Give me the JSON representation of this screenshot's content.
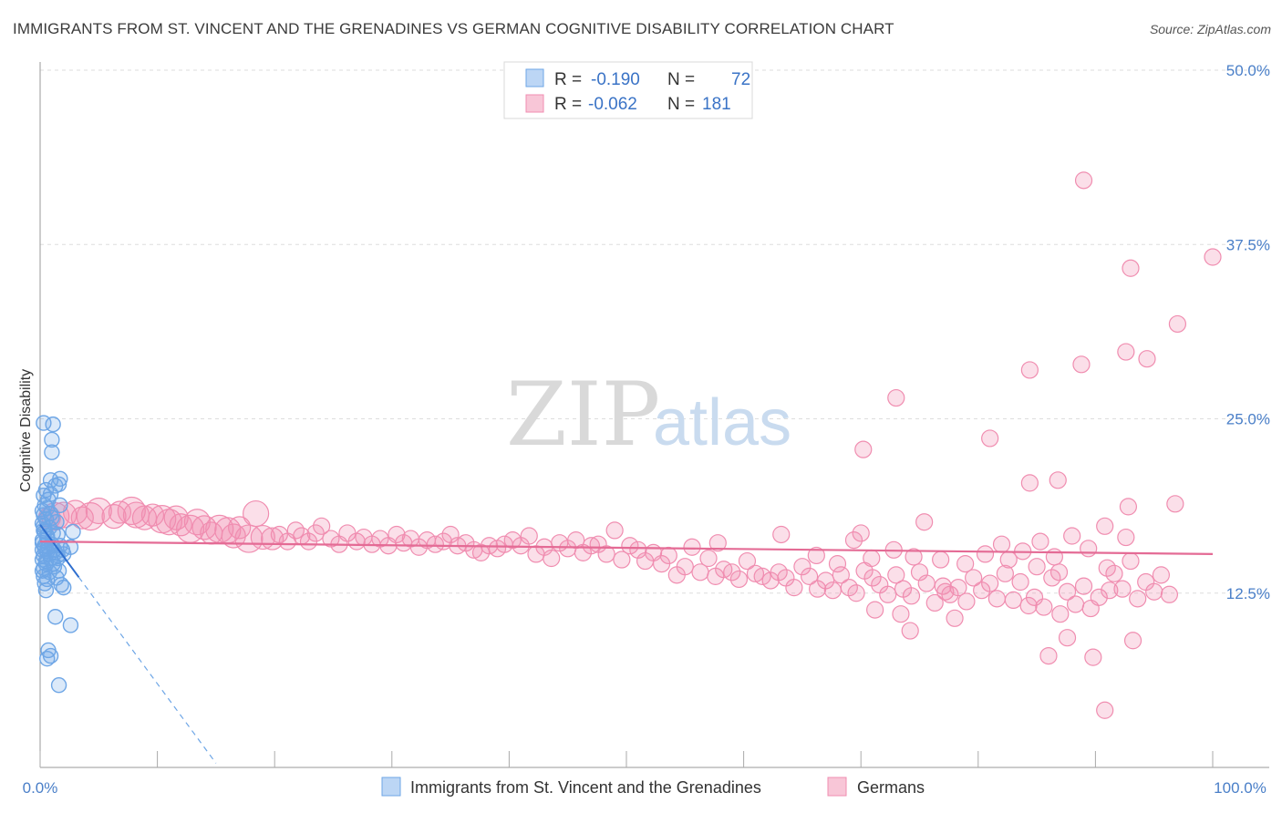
{
  "title": "IMMIGRANTS FROM ST. VINCENT AND THE GRENADINES VS GERMAN COGNITIVE DISABILITY CORRELATION CHART",
  "source": "Source: ZipAtlas.com",
  "watermark": {
    "zip": "ZIP",
    "atlas": "atlas"
  },
  "colors": {
    "blue": "#6ea6e6",
    "blue_line": "#2f6fcf",
    "pink": "#f08db0",
    "pink_line": "#e46b95",
    "tick_text": "#4a7fc8"
  },
  "legend": {
    "r_label": "R =",
    "n_label": "N =",
    "rows": [
      {
        "r": "-0.190",
        "n": "72"
      },
      {
        "r": "-0.062",
        "n": "181"
      }
    ]
  },
  "chart_data": {
    "type": "scatter",
    "ylabel": "Cognitive Disability",
    "xlim": [
      0,
      100
    ],
    "ylim": [
      0,
      50
    ],
    "y_ticks": [
      12.5,
      25.0,
      37.5,
      50.0
    ],
    "y_tick_labels": [
      "12.5%",
      "25.0%",
      "37.5%",
      "50.0%"
    ],
    "x_tick_labels": [
      "0.0%",
      "100.0%"
    ],
    "grid": "horizontal-dashed",
    "legend_position": "top-center",
    "series": [
      {
        "name": "Immigrants from St. Vincent and the Grenadines",
        "trend": {
          "x": [
            0,
            15
          ],
          "y": [
            17.4,
            0.3
          ],
          "solid_until_x": 3.3
        },
        "points": [
          [
            0.3,
            24.7
          ],
          [
            1.1,
            24.6
          ],
          [
            1.0,
            23.5
          ],
          [
            1.0,
            22.6
          ],
          [
            0.9,
            20.6
          ],
          [
            1.7,
            20.7
          ],
          [
            1.6,
            20.3
          ],
          [
            1.3,
            20.2
          ],
          [
            0.5,
            19.9
          ],
          [
            0.3,
            19.5
          ],
          [
            0.7,
            19.2
          ],
          [
            0.4,
            18.8
          ],
          [
            1.7,
            18.8
          ],
          [
            0.2,
            18.4
          ],
          [
            0.9,
            18.2
          ],
          [
            0.5,
            17.8
          ],
          [
            0.2,
            17.5
          ],
          [
            1.4,
            17.6
          ],
          [
            0.8,
            17.2
          ],
          [
            0.3,
            17.0
          ],
          [
            0.6,
            16.6
          ],
          [
            1.5,
            16.7
          ],
          [
            2.8,
            16.9
          ],
          [
            0.2,
            16.3
          ],
          [
            1.0,
            16.0
          ],
          [
            0.4,
            15.9
          ],
          [
            1.7,
            15.9
          ],
          [
            2.6,
            15.8
          ],
          [
            0.2,
            15.6
          ],
          [
            0.6,
            15.5
          ],
          [
            1.2,
            15.6
          ],
          [
            0.3,
            15.2
          ],
          [
            0.9,
            15.0
          ],
          [
            1.5,
            15.2
          ],
          [
            2.0,
            15.3
          ],
          [
            0.2,
            14.9
          ],
          [
            0.5,
            14.6
          ],
          [
            1.1,
            14.6
          ],
          [
            0.3,
            14.3
          ],
          [
            0.8,
            14.0
          ],
          [
            1.6,
            14.1
          ],
          [
            0.3,
            13.7
          ],
          [
            0.6,
            13.5
          ],
          [
            1.4,
            13.6
          ],
          [
            0.4,
            13.2
          ],
          [
            1.8,
            13.1
          ],
          [
            2.0,
            12.9
          ],
          [
            0.5,
            12.7
          ],
          [
            1.3,
            10.8
          ],
          [
            2.6,
            10.2
          ],
          [
            0.7,
            8.4
          ],
          [
            0.9,
            8.0
          ],
          [
            0.6,
            7.8
          ],
          [
            1.6,
            5.9
          ],
          [
            0.2,
            16.1
          ],
          [
            0.7,
            15.8
          ],
          [
            1.3,
            15.4
          ],
          [
            0.4,
            15.7
          ],
          [
            1.9,
            15.6
          ],
          [
            0.6,
            16.4
          ],
          [
            0.3,
            17.3
          ],
          [
            1.1,
            16.8
          ],
          [
            0.8,
            15.3
          ],
          [
            0.5,
            14.8
          ],
          [
            1.2,
            14.4
          ],
          [
            0.3,
            18.1
          ],
          [
            0.6,
            18.6
          ],
          [
            0.9,
            19.6
          ],
          [
            0.4,
            16.9
          ],
          [
            1.5,
            15.0
          ],
          [
            0.2,
            14.1
          ],
          [
            1.0,
            17.9
          ]
        ]
      },
      {
        "name": "Germans",
        "trend": {
          "x": [
            0,
            100
          ],
          "y": [
            16.2,
            15.3
          ]
        },
        "points": [
          [
            0.8,
            17.9
          ],
          [
            1.3,
            18.0
          ],
          [
            2.0,
            18.1
          ],
          [
            3.0,
            18.3
          ],
          [
            3.6,
            17.9
          ],
          [
            4.3,
            18.0
          ],
          [
            5.0,
            18.4
          ],
          [
            6.3,
            18.0
          ],
          [
            6.8,
            18.3
          ],
          [
            7.8,
            18.4
          ],
          [
            8.2,
            18.1
          ],
          [
            8.9,
            17.9
          ],
          [
            9.6,
            18.1
          ],
          [
            10.4,
            17.8
          ],
          [
            11.0,
            17.6
          ],
          [
            11.6,
            17.9
          ],
          [
            12.0,
            17.4
          ],
          [
            12.8,
            17.1
          ],
          [
            13.4,
            17.6
          ],
          [
            14.0,
            17.2
          ],
          [
            14.6,
            16.8
          ],
          [
            15.3,
            17.1
          ],
          [
            16.0,
            17.0
          ],
          [
            16.5,
            16.6
          ],
          [
            17.0,
            17.2
          ],
          [
            17.8,
            16.4
          ],
          [
            18.4,
            18.2
          ],
          [
            19.0,
            16.5
          ],
          [
            19.8,
            16.4
          ],
          [
            20.4,
            16.7
          ],
          [
            21.1,
            16.2
          ],
          [
            21.8,
            17.0
          ],
          [
            22.3,
            16.6
          ],
          [
            22.9,
            16.2
          ],
          [
            23.5,
            16.8
          ],
          [
            24.0,
            17.3
          ],
          [
            24.8,
            16.4
          ],
          [
            25.5,
            16.0
          ],
          [
            26.2,
            16.8
          ],
          [
            27.0,
            16.2
          ],
          [
            27.6,
            16.5
          ],
          [
            28.3,
            16.0
          ],
          [
            29.0,
            16.4
          ],
          [
            29.7,
            15.9
          ],
          [
            30.4,
            16.7
          ],
          [
            31.0,
            16.1
          ],
          [
            31.6,
            16.4
          ],
          [
            32.3,
            15.8
          ],
          [
            33.0,
            16.3
          ],
          [
            33.7,
            16.0
          ],
          [
            34.4,
            16.2
          ],
          [
            35.0,
            16.7
          ],
          [
            35.6,
            15.9
          ],
          [
            36.3,
            16.1
          ],
          [
            37.0,
            15.6
          ],
          [
            37.6,
            15.4
          ],
          [
            38.3,
            15.9
          ],
          [
            39.0,
            15.7
          ],
          [
            39.6,
            16.0
          ],
          [
            40.3,
            16.3
          ],
          [
            41.0,
            15.9
          ],
          [
            41.7,
            16.6
          ],
          [
            42.3,
            15.3
          ],
          [
            43.0,
            15.8
          ],
          [
            43.6,
            15.0
          ],
          [
            44.3,
            16.1
          ],
          [
            45.0,
            15.7
          ],
          [
            45.7,
            16.3
          ],
          [
            46.3,
            15.4
          ],
          [
            47.0,
            15.9
          ],
          [
            47.6,
            16.0
          ],
          [
            48.3,
            15.3
          ],
          [
            49.0,
            17.0
          ],
          [
            49.6,
            14.9
          ],
          [
            50.3,
            15.9
          ],
          [
            51.0,
            15.6
          ],
          [
            51.6,
            14.8
          ],
          [
            52.3,
            15.4
          ],
          [
            53.0,
            14.6
          ],
          [
            53.6,
            15.2
          ],
          [
            54.3,
            13.8
          ],
          [
            55.0,
            14.4
          ],
          [
            55.6,
            15.8
          ],
          [
            56.3,
            14.0
          ],
          [
            57.0,
            15.0
          ],
          [
            57.6,
            13.7
          ],
          [
            58.3,
            14.2
          ],
          [
            59.0,
            14.0
          ],
          [
            59.6,
            13.5
          ],
          [
            60.3,
            14.8
          ],
          [
            61.0,
            13.9
          ],
          [
            61.6,
            13.7
          ],
          [
            62.3,
            13.4
          ],
          [
            63.0,
            14.0
          ],
          [
            63.6,
            13.6
          ],
          [
            64.3,
            12.9
          ],
          [
            65.0,
            14.4
          ],
          [
            65.6,
            13.7
          ],
          [
            66.3,
            12.8
          ],
          [
            67.0,
            13.4
          ],
          [
            67.6,
            12.7
          ],
          [
            68.3,
            13.8
          ],
          [
            69.0,
            12.9
          ],
          [
            69.6,
            12.5
          ],
          [
            70.3,
            14.1
          ],
          [
            71.0,
            13.6
          ],
          [
            71.6,
            13.1
          ],
          [
            72.3,
            12.4
          ],
          [
            73.0,
            13.8
          ],
          [
            73.6,
            12.8
          ],
          [
            74.3,
            12.3
          ],
          [
            75.0,
            14.0
          ],
          [
            75.6,
            13.2
          ],
          [
            76.3,
            11.8
          ],
          [
            77.0,
            13.0
          ],
          [
            77.6,
            12.4
          ],
          [
            78.3,
            12.9
          ],
          [
            79.0,
            11.9
          ],
          [
            79.6,
            13.6
          ],
          [
            80.3,
            12.7
          ],
          [
            81.0,
            13.2
          ],
          [
            81.6,
            12.1
          ],
          [
            82.3,
            13.9
          ],
          [
            83.0,
            12.0
          ],
          [
            83.6,
            13.3
          ],
          [
            84.3,
            11.6
          ],
          [
            85.0,
            14.4
          ],
          [
            85.6,
            11.5
          ],
          [
            86.3,
            13.6
          ],
          [
            87.0,
            11.0
          ],
          [
            87.6,
            12.6
          ],
          [
            88.3,
            11.7
          ],
          [
            89.0,
            13.0
          ],
          [
            89.6,
            11.4
          ],
          [
            90.3,
            12.2
          ],
          [
            91.0,
            14.3
          ],
          [
            91.6,
            13.9
          ],
          [
            92.3,
            12.8
          ],
          [
            93.0,
            14.8
          ],
          [
            93.6,
            12.1
          ],
          [
            94.3,
            13.3
          ],
          [
            95.0,
            12.6
          ],
          [
            95.6,
            13.8
          ],
          [
            96.3,
            12.4
          ],
          [
            66.2,
            15.2
          ],
          [
            68.0,
            14.6
          ],
          [
            70.9,
            15.0
          ],
          [
            72.8,
            15.6
          ],
          [
            74.5,
            15.1
          ],
          [
            76.8,
            14.9
          ],
          [
            78.9,
            14.6
          ],
          [
            80.6,
            15.3
          ],
          [
            82.0,
            16.0
          ],
          [
            83.8,
            15.5
          ],
          [
            85.3,
            16.2
          ],
          [
            86.5,
            15.1
          ],
          [
            88.0,
            16.6
          ],
          [
            89.4,
            15.7
          ],
          [
            90.8,
            17.3
          ],
          [
            92.6,
            16.5
          ],
          [
            75.4,
            17.6
          ],
          [
            69.4,
            16.3
          ],
          [
            57.8,
            16.1
          ],
          [
            63.2,
            16.7
          ],
          [
            86.9,
            14.0
          ],
          [
            78.0,
            10.7
          ],
          [
            74.2,
            9.8
          ],
          [
            71.2,
            11.3
          ],
          [
            70.0,
            16.8
          ],
          [
            84.8,
            12.2
          ],
          [
            73.4,
            11.0
          ],
          [
            93.2,
            9.1
          ],
          [
            91.2,
            12.7
          ],
          [
            87.6,
            9.3
          ],
          [
            82.6,
            14.9
          ],
          [
            77.2,
            12.6
          ],
          [
            89.8,
            7.9
          ],
          [
            86.0,
            8.0
          ],
          [
            92.8,
            18.7
          ],
          [
            96.8,
            18.9
          ],
          [
            81.0,
            23.6
          ],
          [
            84.4,
            20.4
          ],
          [
            86.8,
            20.6
          ],
          [
            88.8,
            28.9
          ],
          [
            94.4,
            29.3
          ],
          [
            84.4,
            28.5
          ],
          [
            73.0,
            26.5
          ],
          [
            70.2,
            22.8
          ],
          [
            90.8,
            4.1
          ]
        ],
        "outliers": [
          [
            89.0,
            42.1
          ],
          [
            93.0,
            35.8
          ],
          [
            97.0,
            31.8
          ],
          [
            100.0,
            36.6
          ],
          [
            92.6,
            29.8
          ]
        ]
      }
    ]
  },
  "bottom_legend": {
    "items": [
      {
        "label": "Immigrants from St. Vincent and the Grenadines"
      },
      {
        "label": "Germans"
      }
    ]
  }
}
